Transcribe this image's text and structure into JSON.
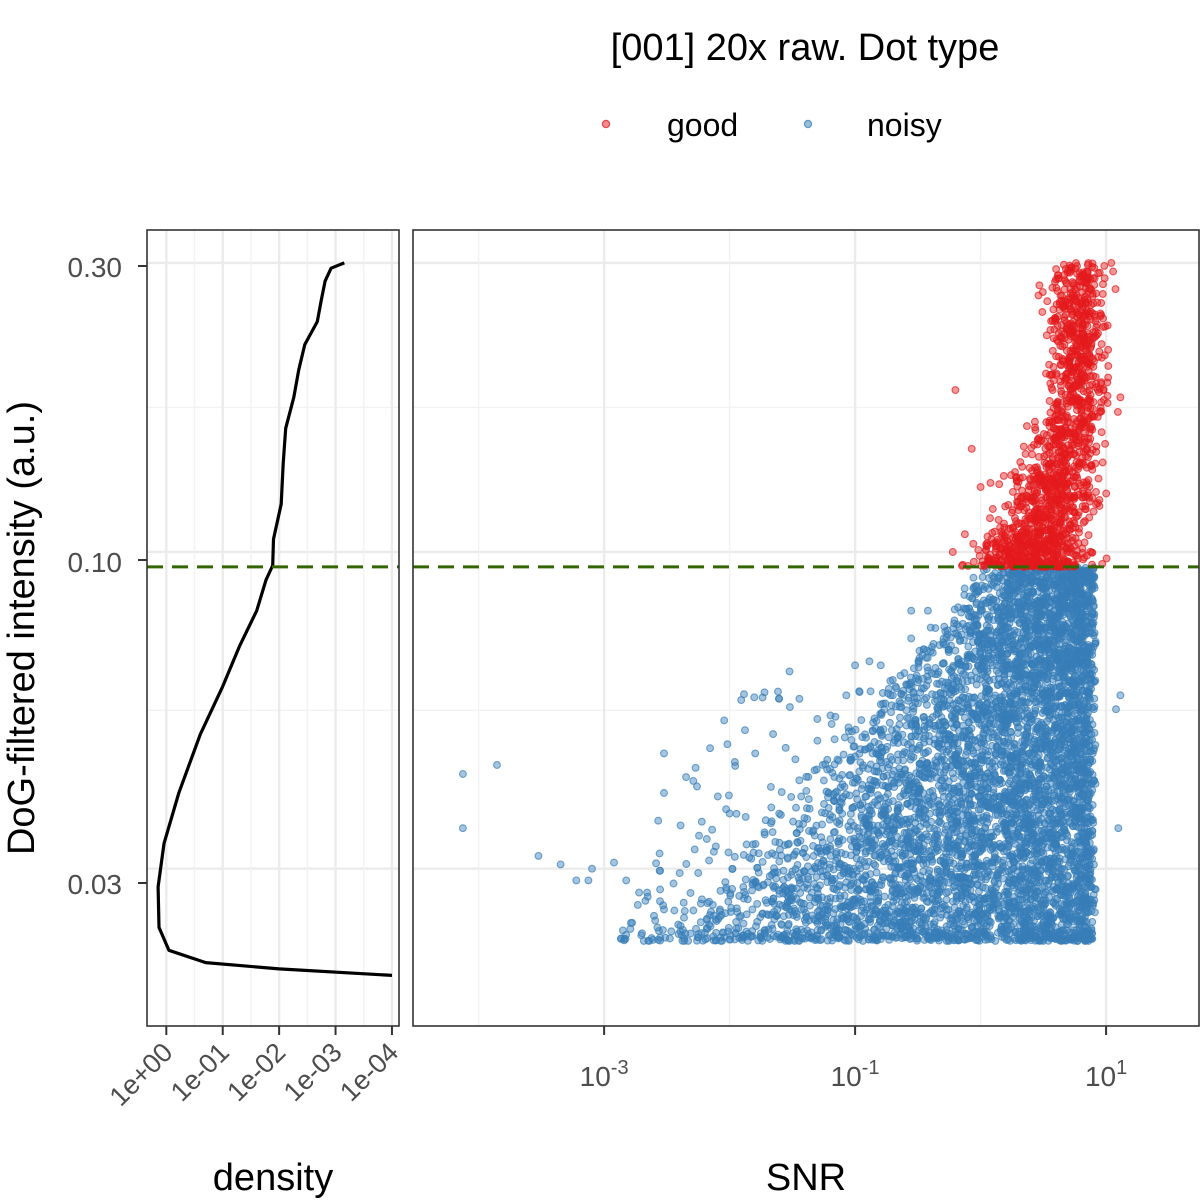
{
  "chart_data": {
    "type": "scatter",
    "legend": {
      "title": "[001] 20x raw. Dot type",
      "placement": "top",
      "entries": [
        {
          "name": "good",
          "color": "#E41A1C"
        },
        {
          "name": "noisy",
          "color": "#377EB8"
        }
      ]
    },
    "y_axis": {
      "label": "DoG-filtered intensity (a.u.)",
      "scale": "log10",
      "ticks": [
        0.03,
        0.1,
        0.3
      ],
      "tick_labels": [
        "0.03",
        "0.10",
        "0.30"
      ],
      "range": [
        0.0165,
        0.34
      ]
    },
    "threshold": {
      "value": 0.0945,
      "color": "#336600",
      "style": "dashed"
    },
    "density_panel": {
      "xlabel": "density",
      "x_scale": "log10-reversed",
      "ticks": [
        1,
        0.1,
        0.01,
        0.001,
        0.0001
      ],
      "tick_labels": [
        "1e+00",
        "1e-01",
        "1e-02",
        "1e-03",
        "1e-04"
      ],
      "x_range": [
        2.2,
        7.5e-05
      ],
      "curve": [
        {
          "y": 0.3,
          "density": 0.0007
        },
        {
          "y": 0.294,
          "density": 0.0012
        },
        {
          "y": 0.28,
          "density": 0.0014
        },
        {
          "y": 0.26,
          "density": 0.0018
        },
        {
          "y": 0.24,
          "density": 0.0023
        },
        {
          "y": 0.22,
          "density": 0.0032
        },
        {
          "y": 0.2,
          "density": 0.0045
        },
        {
          "y": 0.18,
          "density": 0.006
        },
        {
          "y": 0.16,
          "density": 0.007
        },
        {
          "y": 0.14,
          "density": 0.0085
        },
        {
          "y": 0.12,
          "density": 0.01
        },
        {
          "y": 0.105,
          "density": 0.0115
        },
        {
          "y": 0.095,
          "density": 0.013
        },
        {
          "y": 0.09,
          "density": 0.017
        },
        {
          "y": 0.08,
          "density": 0.025
        },
        {
          "y": 0.07,
          "density": 0.05
        },
        {
          "y": 0.06,
          "density": 0.1
        },
        {
          "y": 0.05,
          "density": 0.25
        },
        {
          "y": 0.04,
          "density": 0.6
        },
        {
          "y": 0.033,
          "density": 1.1
        },
        {
          "y": 0.028,
          "density": 1.4
        },
        {
          "y": 0.024,
          "density": 1.35
        },
        {
          "y": 0.022,
          "density": 0.9
        },
        {
          "y": 0.021,
          "density": 0.2
        },
        {
          "y": 0.0205,
          "density": 0.01
        },
        {
          "y": 0.02,
          "density": 0.0001
        }
      ]
    },
    "scatter_panel": {
      "xlabel": "SNR",
      "x_scale": "log10",
      "ticks": [
        0.001,
        0.1,
        10
      ],
      "tick_labels": [
        "10^-3",
        "10^-1",
        "10^1"
      ],
      "x_range": [
        3e-05,
        55
      ],
      "x_tick_base": "10",
      "x_tick_exponents": [
        "-3",
        "-1",
        "1"
      ],
      "series": [
        {
          "name": "good",
          "color": "#E41A1C",
          "region": {
            "y_min": 0.0945,
            "y_max": 0.3,
            "snr_min_at_threshold": 0.25,
            "snr_min_at_top": 1.5,
            "snr_max": 12,
            "approx_points": 1500
          },
          "outliers": [
            {
              "snr": 0.63,
              "y": 0.185
            },
            {
              "snr": 0.85,
              "y": 0.148
            },
            {
              "snr": 0.75,
              "y": 0.107
            },
            {
              "snr": 0.6,
              "y": 0.1
            },
            {
              "snr": 1.0,
              "y": 0.128
            },
            {
              "snr": 1.2,
              "y": 0.13
            },
            {
              "snr": 11.0,
              "y": 0.3
            },
            {
              "snr": 13.0,
              "y": 0.18
            }
          ]
        },
        {
          "name": "noisy",
          "color": "#377EB8",
          "region": {
            "y_min": 0.0228,
            "y_max": 0.0945,
            "snr_max": 8,
            "approx_points": 6000
          },
          "outliers": [
            {
              "snr": 7.5e-05,
              "y": 0.043
            },
            {
              "snr": 7.5e-05,
              "y": 0.035
            },
            {
              "snr": 0.00014,
              "y": 0.0445
            },
            {
              "snr": 0.0003,
              "y": 0.0315
            },
            {
              "snr": 0.00045,
              "y": 0.0305
            },
            {
              "snr": 0.0006,
              "y": 0.0287
            },
            {
              "snr": 0.00075,
              "y": 0.0287
            },
            {
              "snr": 0.0008,
              "y": 0.03
            },
            {
              "snr": 0.0012,
              "y": 0.0307
            },
            {
              "snr": 0.0015,
              "y": 0.0287
            },
            {
              "snr": 0.0019,
              "y": 0.0274
            },
            {
              "snr": 0.0022,
              "y": 0.0274
            },
            {
              "snr": 0.003,
              "y": 0.0257
            },
            {
              "snr": 0.003,
              "y": 0.0465
            },
            {
              "snr": 0.003,
              "y": 0.04
            },
            {
              "snr": 0.0027,
              "y": 0.036
            },
            {
              "snr": 0.0045,
              "y": 0.0425
            },
            {
              "snr": 0.0055,
              "y": 0.041
            },
            {
              "snr": 0.011,
              "y": 0.045
            },
            {
              "snr": 0.016,
              "y": 0.0465
            },
            {
              "snr": 0.028,
              "y": 0.0475
            },
            {
              "snr": 0.03,
              "y": 0.0635
            },
            {
              "snr": 0.05,
              "y": 0.053
            },
            {
              "snr": 0.065,
              "y": 0.052
            },
            {
              "snr": 0.1,
              "y": 0.065
            },
            {
              "snr": 0.13,
              "y": 0.066
            },
            {
              "snr": 0.16,
              "y": 0.065
            },
            {
              "snr": 0.28,
              "y": 0.072
            },
            {
              "snr": 0.28,
              "y": 0.08
            },
            {
              "snr": 0.38,
              "y": 0.08
            },
            {
              "snr": 0.4,
              "y": 0.075
            },
            {
              "snr": 0.12,
              "y": 0.05
            },
            {
              "snr": 0.2,
              "y": 0.058
            },
            {
              "snr": 0.01,
              "y": 0.037
            },
            {
              "snr": 0.0075,
              "y": 0.032
            },
            {
              "snr": 0.004,
              "y": 0.0295
            },
            {
              "snr": 12.0,
              "y": 0.055
            },
            {
              "snr": 13.0,
              "y": 0.058
            },
            {
              "snr": 12.5,
              "y": 0.035
            }
          ]
        }
      ]
    }
  }
}
